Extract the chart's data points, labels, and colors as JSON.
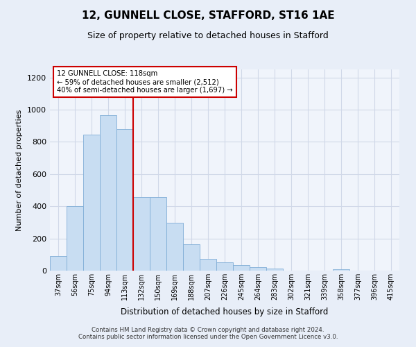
{
  "title": "12, GUNNELL CLOSE, STAFFORD, ST16 1AE",
  "subtitle": "Size of property relative to detached houses in Stafford",
  "xlabel": "Distribution of detached houses by size in Stafford",
  "ylabel": "Number of detached properties",
  "categories": [
    "37sqm",
    "56sqm",
    "75sqm",
    "94sqm",
    "113sqm",
    "132sqm",
    "150sqm",
    "169sqm",
    "188sqm",
    "207sqm",
    "226sqm",
    "245sqm",
    "264sqm",
    "283sqm",
    "302sqm",
    "321sqm",
    "339sqm",
    "358sqm",
    "377sqm",
    "396sqm",
    "415sqm"
  ],
  "values": [
    90,
    400,
    845,
    965,
    880,
    455,
    455,
    297,
    163,
    72,
    50,
    33,
    20,
    15,
    0,
    0,
    0,
    10,
    0,
    0,
    0
  ],
  "bar_color": "#c8ddf2",
  "bar_edgecolor": "#7fadd6",
  "vline_index": 4,
  "vline_color": "#cc0000",
  "annotation_text": "12 GUNNELL CLOSE: 118sqm\n← 59% of detached houses are smaller (2,512)\n40% of semi-detached houses are larger (1,697) →",
  "annotation_box_color": "#ffffff",
  "annotation_box_edgecolor": "#cc0000",
  "ylim": [
    0,
    1250
  ],
  "yticks": [
    0,
    200,
    400,
    600,
    800,
    1000,
    1200
  ],
  "footer": "Contains HM Land Registry data © Crown copyright and database right 2024.\nContains public sector information licensed under the Open Government Licence v3.0.",
  "bg_color": "#e8eef8",
  "plot_bg_color": "#f0f4fb",
  "title_fontsize": 11,
  "subtitle_fontsize": 9,
  "grid_color": "#d0d8e8"
}
